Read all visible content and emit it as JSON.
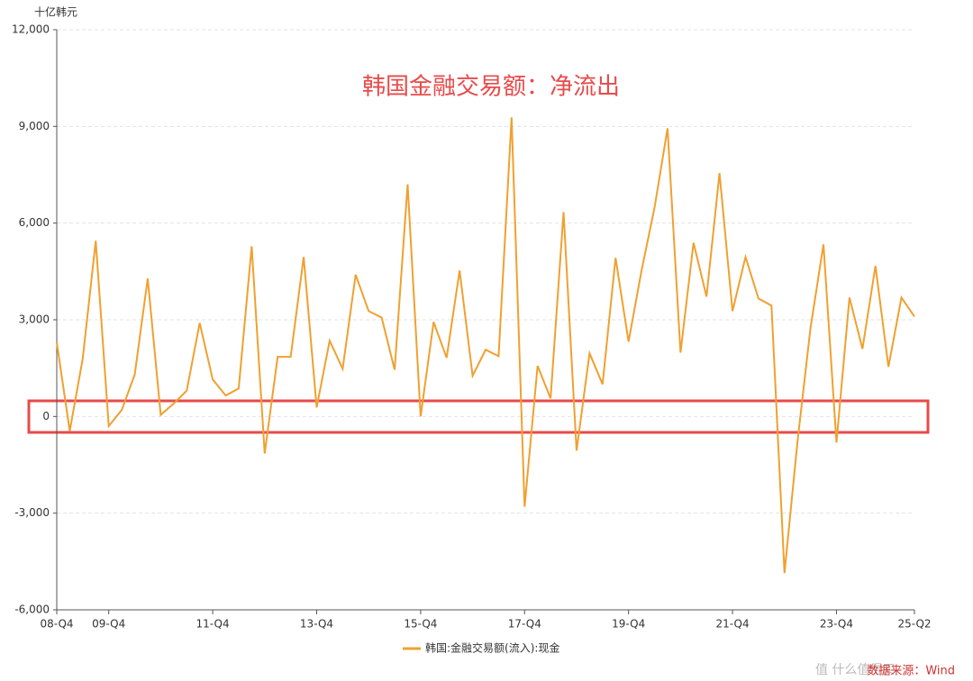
{
  "chart_data": {
    "type": "line",
    "annotation": "韩国金融交易额：净流出",
    "y_unit": "十亿韩元",
    "source": "数据来源：Wind",
    "watermark": "值 什么值得买",
    "categories": [
      "08-Q4",
      null,
      null,
      null,
      "09-Q4",
      null,
      null,
      null,
      null,
      null,
      null,
      null,
      "11-Q4",
      null,
      null,
      null,
      null,
      null,
      null,
      null,
      "13-Q4",
      null,
      null,
      null,
      null,
      null,
      null,
      null,
      "15-Q4",
      null,
      null,
      null,
      null,
      null,
      null,
      null,
      "17-Q4",
      null,
      null,
      null,
      null,
      null,
      null,
      null,
      "19-Q4",
      null,
      null,
      null,
      null,
      null,
      null,
      null,
      "21-Q4",
      null,
      null,
      null,
      null,
      null,
      null,
      null,
      "23-Q4",
      null,
      null,
      null,
      null,
      null,
      "25-Q2"
    ],
    "series": [
      {
        "name": "韩国:金融交易额(流入):现金",
        "color": "#f0a030",
        "values": [
          2300,
          -450,
          1800,
          5450,
          -300,
          200,
          1300,
          4280,
          50,
          400,
          800,
          2900,
          1150,
          650,
          870,
          5280,
          -1150,
          1850,
          1850,
          4950,
          280,
          2350,
          1480,
          4400,
          3270,
          3070,
          1450,
          7200,
          0,
          2930,
          1820,
          4530,
          1260,
          2070,
          1870,
          9280,
          -2800,
          1570,
          560,
          6340,
          -1060,
          1960,
          1000,
          4920,
          2320,
          4530,
          6480,
          8940,
          1980,
          5390,
          3720,
          7550,
          3270,
          4950,
          3660,
          3440,
          -4860,
          -780,
          2740,
          5340,
          -810,
          3690,
          2100,
          4670,
          1540,
          3690,
          3100
        ]
      }
    ],
    "ylim": [
      -6000,
      12000
    ],
    "yticks": [
      {
        "value": -6000,
        "label": "-6,000"
      },
      {
        "value": -3000,
        "label": "-3,000"
      },
      0,
      {
        "value": 3000,
        "label": "3,000"
      },
      {
        "value": 6000,
        "label": "6,000"
      },
      {
        "value": 9000,
        "label": "9,000"
      },
      {
        "value": 12000,
        "label": "12,000"
      }
    ],
    "grid": true
  }
}
